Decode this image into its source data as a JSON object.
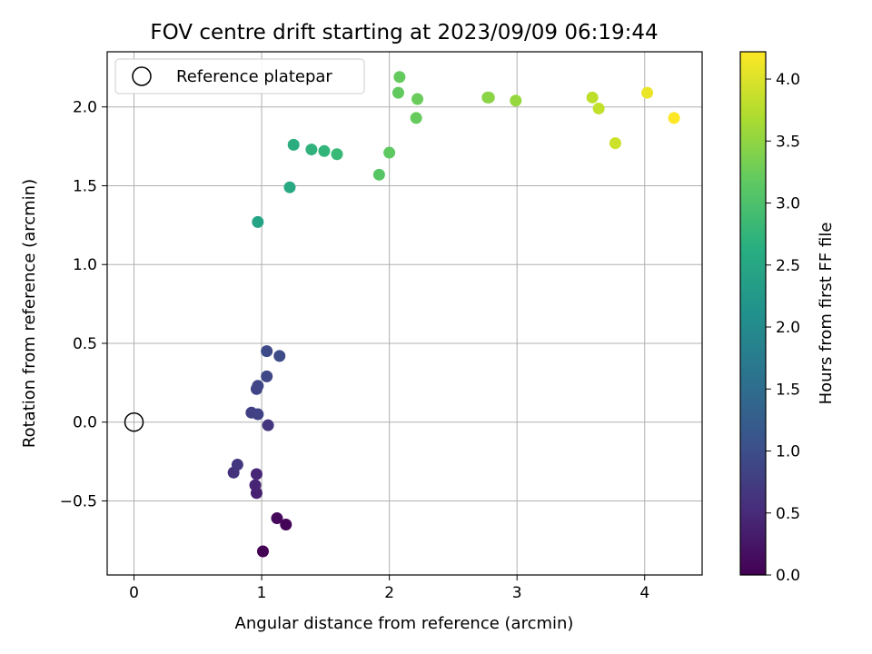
{
  "chart_data": {
    "type": "scatter",
    "title": "FOV centre drift starting at 2023/09/09 06:19:44",
    "xlabel": "Angular distance from reference (arcmin)",
    "ylabel": "Rotation from reference (arcmin)",
    "colorbar_label": "Hours from first FF file",
    "xlim": [
      -0.21,
      4.45
    ],
    "ylim": [
      -0.97,
      2.35
    ],
    "clim": [
      0.0,
      4.22
    ],
    "colormap": "viridis",
    "grid": true,
    "legend_position": "top-left",
    "x_ticks": [
      0,
      1,
      2,
      3,
      4
    ],
    "x_tick_labels": [
      "0",
      "1",
      "2",
      "3",
      "4"
    ],
    "y_ticks": [
      -0.5,
      0.0,
      0.5,
      1.0,
      1.5,
      2.0
    ],
    "y_tick_labels": [
      "−0.5",
      "0.0",
      "0.5",
      "1.0",
      "1.5",
      "2.0"
    ],
    "c_ticks": [
      0.0,
      0.5,
      1.0,
      1.5,
      2.0,
      2.5,
      3.0,
      3.5,
      4.0
    ],
    "c_tick_labels": [
      "0.0",
      "0.5",
      "1.0",
      "1.5",
      "2.0",
      "2.5",
      "3.0",
      "3.5",
      "4.0"
    ],
    "reference": {
      "name": "Reference platepar",
      "x": 0.0,
      "y": 0.0
    },
    "points": [
      {
        "x": 1.01,
        "y": -0.82,
        "c": 0.0
      },
      {
        "x": 1.19,
        "y": -0.65,
        "c": 0.05
      },
      {
        "x": 1.12,
        "y": -0.61,
        "c": 0.1
      },
      {
        "x": 0.96,
        "y": -0.45,
        "c": 0.38
      },
      {
        "x": 0.95,
        "y": -0.4,
        "c": 0.42
      },
      {
        "x": 0.96,
        "y": -0.33,
        "c": 0.45
      },
      {
        "x": 0.78,
        "y": -0.32,
        "c": 0.6
      },
      {
        "x": 0.81,
        "y": -0.27,
        "c": 0.68
      },
      {
        "x": 1.05,
        "y": -0.02,
        "c": 0.65
      },
      {
        "x": 0.92,
        "y": 0.06,
        "c": 0.8
      },
      {
        "x": 0.97,
        "y": 0.05,
        "c": 0.83
      },
      {
        "x": 0.96,
        "y": 0.21,
        "c": 0.85
      },
      {
        "x": 0.97,
        "y": 0.23,
        "c": 0.87
      },
      {
        "x": 1.04,
        "y": 0.29,
        "c": 0.9
      },
      {
        "x": 1.04,
        "y": 0.45,
        "c": 0.92
      },
      {
        "x": 1.14,
        "y": 0.42,
        "c": 0.95
      },
      {
        "x": 0.97,
        "y": 1.27,
        "c": 2.45
      },
      {
        "x": 1.22,
        "y": 1.49,
        "c": 2.55
      },
      {
        "x": 1.25,
        "y": 1.76,
        "c": 2.62
      },
      {
        "x": 1.39,
        "y": 1.73,
        "c": 2.72
      },
      {
        "x": 1.49,
        "y": 1.72,
        "c": 2.78
      },
      {
        "x": 1.59,
        "y": 1.7,
        "c": 2.85
      },
      {
        "x": 1.92,
        "y": 1.57,
        "c": 3.1
      },
      {
        "x": 2.0,
        "y": 1.71,
        "c": 3.15
      },
      {
        "x": 2.07,
        "y": 2.09,
        "c": 3.18
      },
      {
        "x": 2.08,
        "y": 2.19,
        "c": 3.2
      },
      {
        "x": 2.21,
        "y": 1.93,
        "c": 3.22
      },
      {
        "x": 2.22,
        "y": 2.05,
        "c": 3.24
      },
      {
        "x": 2.77,
        "y": 2.06,
        "c": 3.45
      },
      {
        "x": 2.78,
        "y": 2.06,
        "c": 3.47
      },
      {
        "x": 2.99,
        "y": 2.04,
        "c": 3.55
      },
      {
        "x": 3.59,
        "y": 2.06,
        "c": 3.8
      },
      {
        "x": 3.64,
        "y": 1.99,
        "c": 3.83
      },
      {
        "x": 3.77,
        "y": 1.77,
        "c": 3.9
      },
      {
        "x": 4.02,
        "y": 2.09,
        "c": 4.1
      },
      {
        "x": 4.23,
        "y": 1.93,
        "c": 4.22
      }
    ]
  }
}
